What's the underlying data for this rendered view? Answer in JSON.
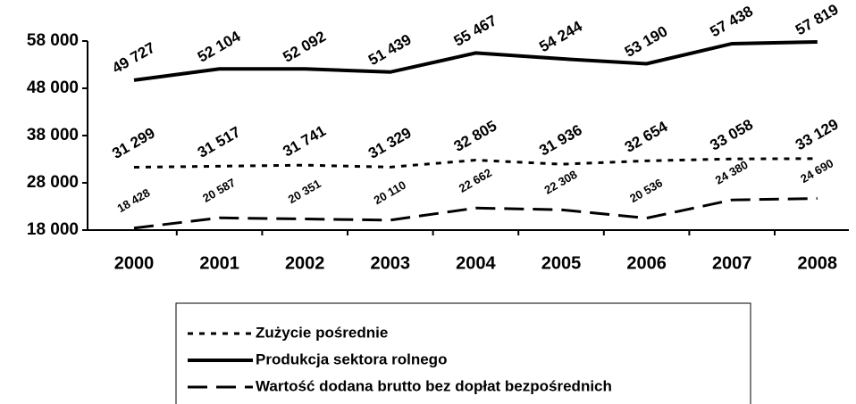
{
  "chart_data": {
    "type": "line",
    "categories": [
      "2000",
      "2001",
      "2002",
      "2003",
      "2004",
      "2005",
      "2006",
      "2007",
      "2008"
    ],
    "ylim": [
      18000,
      58000
    ],
    "yticks": [
      {
        "value": 18000,
        "label": "18 000"
      },
      {
        "value": 28000,
        "label": "28 000"
      },
      {
        "value": 38000,
        "label": "38 000"
      },
      {
        "value": 48000,
        "label": "48 000"
      },
      {
        "value": 58000,
        "label": "58 000"
      }
    ],
    "series": [
      {
        "name": "Zużycie pośrednie",
        "color": "#000000",
        "line_style": "dotted",
        "values": [
          31299,
          31517,
          31741,
          31329,
          32805,
          31936,
          32654,
          33058,
          33129
        ],
        "value_labels": [
          "31 299",
          "31 517",
          "31 741",
          "31 329",
          "32 805",
          "31 936",
          "32 654",
          "33 058",
          "33 129"
        ]
      },
      {
        "name": "Produkcja sektora rolnego",
        "color": "#000000",
        "line_style": "solid",
        "values": [
          49727,
          52104,
          52092,
          51439,
          55467,
          54244,
          53190,
          57438,
          57819
        ],
        "value_labels": [
          "49 727",
          "52 104",
          "52 092",
          "51 439",
          "55 467",
          "54 244",
          "53 190",
          "57 438",
          "57 819"
        ]
      },
      {
        "name": "Wartość dodana brutto bez dopłat bezpośrednich",
        "color": "#000000",
        "line_style": "dashed",
        "values": [
          18428,
          20587,
          20351,
          20110,
          22662,
          22308,
          20536,
          24380,
          24690
        ],
        "value_labels": [
          "18 428",
          "20 587",
          "20 351",
          "20 110",
          "22 662",
          "22 308",
          "20 536",
          "24 380",
          "24 690"
        ]
      }
    ]
  }
}
